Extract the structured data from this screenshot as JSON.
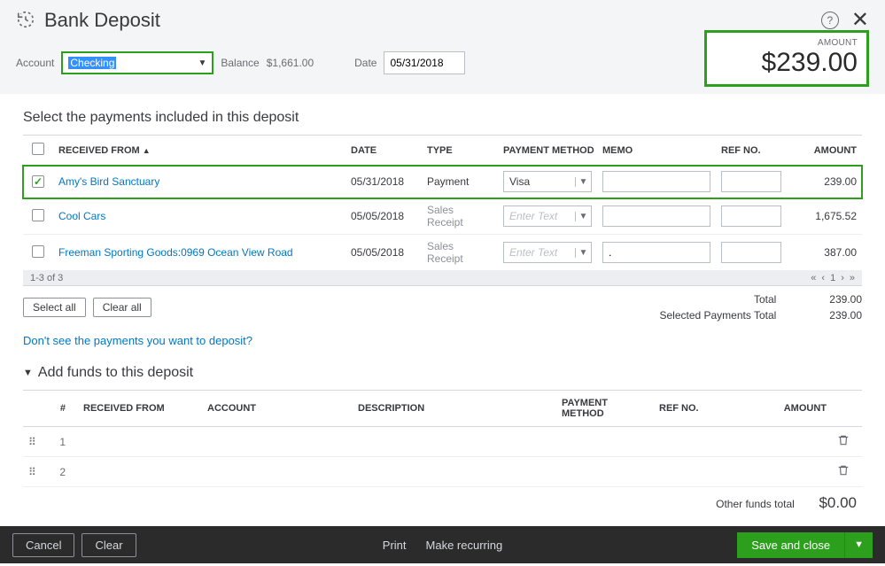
{
  "header": {
    "title": "Bank Deposit",
    "account_label": "Account",
    "account_value": "Checking",
    "balance_label": "Balance",
    "balance_value": "$1,661.00",
    "date_label": "Date",
    "date_value": "05/31/2018",
    "amount_label": "AMOUNT",
    "amount_value": "$239.00",
    "colors": {
      "highlight_border": "#2ca01c",
      "selection_bg": "#3390ff"
    }
  },
  "payments": {
    "heading": "Select the payments included in this deposit",
    "columns": {
      "received_from": "RECEIVED FROM",
      "date": "DATE",
      "type": "TYPE",
      "payment_method": "PAYMENT METHOD",
      "memo": "MEMO",
      "ref_no": "REF NO.",
      "amount": "AMOUNT"
    },
    "rows": [
      {
        "checked": true,
        "received_from": "Amy's Bird Sanctuary",
        "date": "05/31/2018",
        "type": "Payment",
        "type_small": false,
        "pm_value": "Visa",
        "pm_placeholder": false,
        "memo": "",
        "ref": "",
        "amount": "239.00",
        "highlight": true
      },
      {
        "checked": false,
        "received_from": "Cool Cars",
        "date": "05/05/2018",
        "type": "Sales Receipt",
        "type_small": true,
        "pm_value": "Enter Text",
        "pm_placeholder": true,
        "memo": "",
        "ref": "",
        "amount": "1,675.52",
        "highlight": false
      },
      {
        "checked": false,
        "received_from": "Freeman Sporting Goods:0969 Ocean View Road",
        "date": "05/05/2018",
        "type": "Sales Receipt",
        "type_small": true,
        "pm_value": "Enter Text",
        "pm_placeholder": true,
        "memo": ".",
        "ref": "",
        "amount": "387.00",
        "highlight": false
      }
    ],
    "pager_text": "1-3 of 3",
    "select_all": "Select all",
    "clear_all": "Clear all",
    "total_label": "Total",
    "total_value": "239.00",
    "selected_total_label": "Selected Payments Total",
    "selected_total_value": "239.00",
    "help_link": "Don't see the payments you want to deposit?"
  },
  "add_funds": {
    "heading": "Add funds to this deposit",
    "columns": {
      "num": "#",
      "received_from": "RECEIVED FROM",
      "account": "ACCOUNT",
      "description": "DESCRIPTION",
      "payment_method": "PAYMENT METHOD",
      "ref_no": "REF NO.",
      "amount": "AMOUNT"
    },
    "rows": [
      {
        "num": "1"
      },
      {
        "num": "2"
      }
    ],
    "other_total_label": "Other funds total",
    "other_total_value": "$0.00"
  },
  "footer": {
    "cancel": "Cancel",
    "clear": "Clear",
    "print": "Print",
    "recurring": "Make recurring",
    "save": "Save and close"
  }
}
